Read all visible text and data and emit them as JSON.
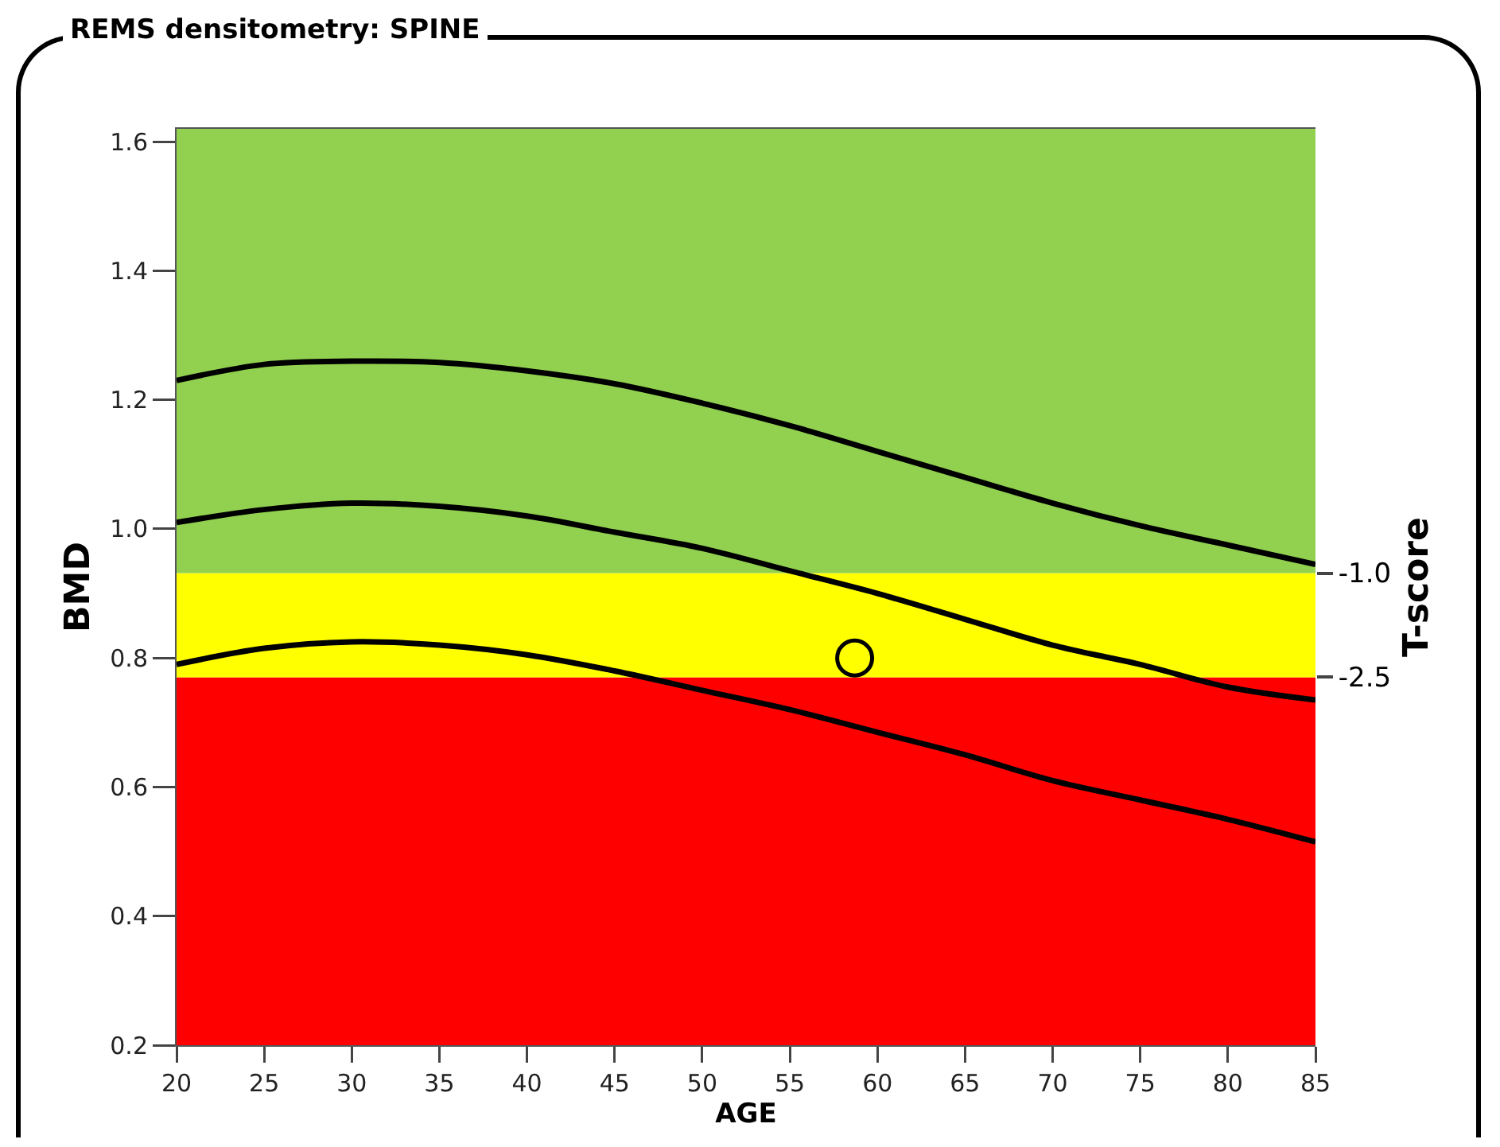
{
  "chart_data": {
    "type": "line",
    "title": "REMS densitometry: SPINE",
    "xlabel": "AGE",
    "ylabel": "BMD",
    "y2label": "T-score",
    "x": [
      20,
      25,
      30,
      35,
      40,
      45,
      50,
      55,
      60,
      65,
      70,
      75,
      80,
      85
    ],
    "series": [
      {
        "color": "#000000",
        "values": [
          1.23,
          1.255,
          1.26,
          1.258,
          1.245,
          1.225,
          1.195,
          1.16,
          1.12,
          1.08,
          1.04,
          1.005,
          0.975,
          0.945
        ]
      },
      {
        "color": "#000000",
        "values": [
          1.01,
          1.03,
          1.04,
          1.035,
          1.02,
          0.995,
          0.97,
          0.935,
          0.9,
          0.86,
          0.82,
          0.79,
          0.755,
          0.735
        ]
      },
      {
        "color": "#000000",
        "values": [
          0.79,
          0.815,
          0.825,
          0.82,
          0.805,
          0.78,
          0.75,
          0.72,
          0.685,
          0.65,
          0.61,
          0.58,
          0.55,
          0.515
        ]
      },
      {
        "type": "scatter",
        "color": "#000000",
        "marker": "circle",
        "x": [
          58.7
        ],
        "values": [
          0.8
        ]
      }
    ],
    "xlim": [
      20,
      85
    ],
    "xticks": [
      20,
      25,
      30,
      35,
      40,
      45,
      50,
      55,
      60,
      65,
      70,
      75,
      80,
      85
    ],
    "ylim": [
      0.2,
      1.62
    ],
    "yticks": [
      0.2,
      0.4,
      0.6,
      0.8,
      {
        "value": 1.0,
        "label": "1.0"
      },
      1.2,
      1.4,
      1.6
    ],
    "y2lim": [
      -7.8,
      5.4
    ],
    "y2ticks": [
      {
        "value": -1.0,
        "label": "-1.0"
      },
      -2.5
    ],
    "bands": [
      {
        "axis": "y2",
        "from": -7.8,
        "to": -2.5,
        "color": "#ff0000"
      },
      {
        "axis": "y2",
        "from": -2.5,
        "to": -1.0,
        "color": "#ffff00"
      },
      {
        "axis": "y2",
        "from": -1.0,
        "to": 5.4,
        "color": "#92d050"
      }
    ],
    "grid": false,
    "line_style": "solid"
  }
}
